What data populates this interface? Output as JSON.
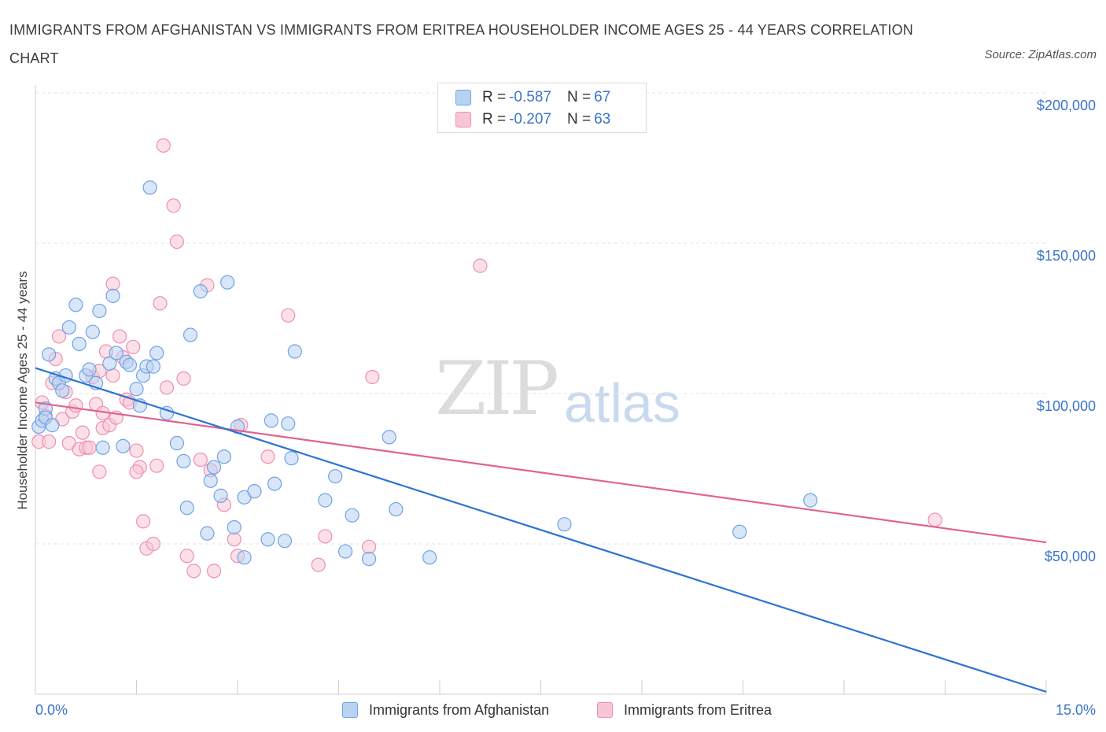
{
  "header": {
    "title": "IMMIGRANTS FROM AFGHANISTAN VS IMMIGRANTS FROM ERITREA HOUSEHOLDER INCOME AGES 25 - 44 YEARS CORRELATION CHART",
    "source": "Source: ZipAtlas.com"
  },
  "watermark": {
    "zip": "ZIP",
    "atlas": "atlas"
  },
  "legend_top": {
    "rows": [
      {
        "r_label": "R =",
        "r_value": "-0.587",
        "n_label": "N =",
        "n_value": "67",
        "color": "#6fa3e5"
      },
      {
        "r_label": "R =",
        "r_value": "-0.207",
        "n_label": "N =",
        "n_value": "63",
        "color": "#ef8fb0"
      }
    ]
  },
  "legend_bottom": {
    "items": [
      "Immigrants from Afghanistan",
      "Immigrants from Eritrea"
    ]
  },
  "colors": {
    "blue_stroke": "#6fa3e5",
    "blue_fill": "#b9d2f2",
    "blue_line": "#2d74d2",
    "pink_stroke": "#ef8fb0",
    "pink_fill": "#f7c6d6",
    "pink_line": "#e2638f",
    "tick_text": "#3b74c9"
  },
  "chart_data": {
    "type": "scatter",
    "title": "IMMIGRANTS FROM AFGHANISTAN VS IMMIGRANTS FROM ERITREA HOUSEHOLDER INCOME AGES 25 - 44 YEARS CORRELATION CHART",
    "xlabel": "",
    "ylabel": "Householder Income Ages 25 - 44 years",
    "xlim": [
      0,
      15
    ],
    "ylim": [
      0,
      200000
    ],
    "x_tick_labels": [
      "0.0%",
      "15.0%"
    ],
    "y_tick_labels": [
      "$50,000",
      "$100,000",
      "$150,000",
      "$200,000"
    ],
    "y_ticks": [
      50000,
      100000,
      150000,
      200000
    ],
    "grid": true,
    "series": [
      {
        "name": "Immigrants from Afghanistan",
        "r": -0.587,
        "n": 67,
        "trend": [
          [
            0.0,
            108500
          ],
          [
            15.0,
            800
          ]
        ],
        "points": [
          [
            0.05,
            89000
          ],
          [
            0.1,
            91000
          ],
          [
            0.15,
            95000
          ],
          [
            0.15,
            92000
          ],
          [
            0.2,
            113000
          ],
          [
            0.25,
            89500
          ],
          [
            0.3,
            105000
          ],
          [
            0.35,
            103500
          ],
          [
            0.4,
            101000
          ],
          [
            0.45,
            106000
          ],
          [
            0.5,
            122000
          ],
          [
            0.6,
            129500
          ],
          [
            0.65,
            116500
          ],
          [
            0.75,
            106000
          ],
          [
            0.8,
            108000
          ],
          [
            0.85,
            120500
          ],
          [
            0.9,
            103500
          ],
          [
            0.95,
            127500
          ],
          [
            1.0,
            82000
          ],
          [
            1.1,
            110000
          ],
          [
            1.15,
            132500
          ],
          [
            1.2,
            113500
          ],
          [
            1.3,
            82500
          ],
          [
            1.35,
            110500
          ],
          [
            1.4,
            109500
          ],
          [
            1.5,
            101500
          ],
          [
            1.55,
            96000
          ],
          [
            1.6,
            106000
          ],
          [
            1.65,
            109000
          ],
          [
            1.7,
            168500
          ],
          [
            1.75,
            109000
          ],
          [
            1.8,
            113500
          ],
          [
            1.95,
            93500
          ],
          [
            2.1,
            83500
          ],
          [
            2.2,
            77500
          ],
          [
            2.25,
            62000
          ],
          [
            2.3,
            119500
          ],
          [
            2.45,
            134000
          ],
          [
            2.55,
            53500
          ],
          [
            2.6,
            71000
          ],
          [
            2.65,
            75500
          ],
          [
            2.75,
            66000
          ],
          [
            2.8,
            79000
          ],
          [
            2.85,
            137000
          ],
          [
            2.95,
            55500
          ],
          [
            3.0,
            89000
          ],
          [
            3.1,
            45500
          ],
          [
            3.1,
            65500
          ],
          [
            3.25,
            67500
          ],
          [
            3.45,
            51500
          ],
          [
            3.5,
            91000
          ],
          [
            3.55,
            70000
          ],
          [
            3.7,
            51000
          ],
          [
            3.75,
            90000
          ],
          [
            3.8,
            78500
          ],
          [
            3.85,
            114000
          ],
          [
            4.3,
            64500
          ],
          [
            4.45,
            72500
          ],
          [
            4.6,
            47500
          ],
          [
            4.7,
            59500
          ],
          [
            4.95,
            45000
          ],
          [
            5.25,
            85500
          ],
          [
            5.35,
            61500
          ],
          [
            5.85,
            45500
          ],
          [
            7.85,
            56500
          ],
          [
            10.45,
            54000
          ],
          [
            11.5,
            64500
          ]
        ]
      },
      {
        "name": "Immigrants from Eritrea",
        "r": -0.207,
        "n": 63,
        "trend": [
          [
            0.0,
            97000
          ],
          [
            15.0,
            50500
          ]
        ],
        "points": [
          [
            0.05,
            84000
          ],
          [
            0.1,
            97000
          ],
          [
            0.15,
            92500
          ],
          [
            0.2,
            84000
          ],
          [
            0.25,
            103500
          ],
          [
            0.3,
            111500
          ],
          [
            0.35,
            119000
          ],
          [
            0.4,
            91500
          ],
          [
            0.5,
            83500
          ],
          [
            0.55,
            94000
          ],
          [
            0.6,
            96000
          ],
          [
            0.65,
            81500
          ],
          [
            0.7,
            87000
          ],
          [
            0.75,
            82000
          ],
          [
            0.8,
            82000
          ],
          [
            0.85,
            105500
          ],
          [
            0.9,
            96500
          ],
          [
            0.95,
            74000
          ],
          [
            0.95,
            107500
          ],
          [
            1.0,
            88500
          ],
          [
            1.05,
            114000
          ],
          [
            1.1,
            89500
          ],
          [
            1.15,
            106000
          ],
          [
            1.15,
            136500
          ],
          [
            1.2,
            92000
          ],
          [
            1.25,
            119000
          ],
          [
            1.3,
            112000
          ],
          [
            1.35,
            98000
          ],
          [
            1.4,
            97000
          ],
          [
            1.45,
            115500
          ],
          [
            1.5,
            81000
          ],
          [
            1.55,
            75500
          ],
          [
            1.6,
            57500
          ],
          [
            1.65,
            48500
          ],
          [
            1.75,
            50000
          ],
          [
            1.8,
            76000
          ],
          [
            1.85,
            130000
          ],
          [
            1.9,
            182500
          ],
          [
            1.95,
            102000
          ],
          [
            2.05,
            162500
          ],
          [
            2.1,
            150500
          ],
          [
            2.2,
            105000
          ],
          [
            2.25,
            46000
          ],
          [
            2.35,
            41000
          ],
          [
            2.45,
            78000
          ],
          [
            2.55,
            136000
          ],
          [
            2.6,
            74500
          ],
          [
            2.65,
            41000
          ],
          [
            2.8,
            63000
          ],
          [
            2.95,
            51500
          ],
          [
            3.0,
            46000
          ],
          [
            3.05,
            89500
          ],
          [
            3.45,
            79000
          ],
          [
            3.75,
            126000
          ],
          [
            4.2,
            43000
          ],
          [
            4.3,
            52500
          ],
          [
            4.95,
            49000
          ],
          [
            5.0,
            105500
          ],
          [
            6.6,
            142500
          ],
          [
            13.35,
            58000
          ],
          [
            0.45,
            100500
          ],
          [
            1.0,
            93500
          ],
          [
            1.5,
            74000
          ]
        ]
      }
    ]
  }
}
